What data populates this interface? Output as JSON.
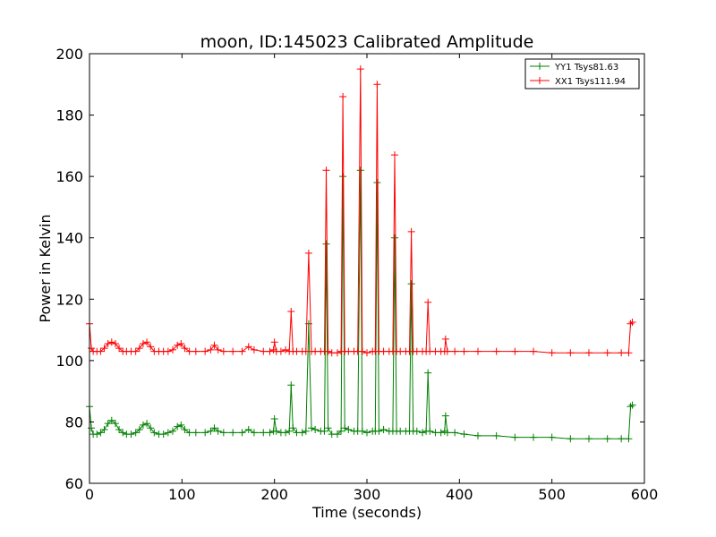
{
  "chart_data": {
    "type": "line",
    "title": "moon, ID:145023 Calibrated Amplitude",
    "xlabel": "Time (seconds)",
    "ylabel": "Power in Kelvin",
    "xlim": [
      0,
      600
    ],
    "ylim": [
      60,
      200
    ],
    "xticks": [
      "0",
      "100",
      "200",
      "300",
      "400",
      "500",
      "600"
    ],
    "yticks": [
      "60",
      "80",
      "100",
      "120",
      "140",
      "160",
      "180",
      "200"
    ],
    "grid": false,
    "legend_position": "top-right",
    "series": [
      {
        "name": "YY1 Tsys81.63",
        "color": "#008000",
        "marker": "+",
        "points": [
          [
            0,
            85
          ],
          [
            2,
            78
          ],
          [
            4,
            76
          ],
          [
            8,
            76
          ],
          [
            12,
            76.5
          ],
          [
            16,
            77.5
          ],
          [
            20,
            79.5
          ],
          [
            24,
            80.5
          ],
          [
            28,
            79.5
          ],
          [
            32,
            77.5
          ],
          [
            36,
            76.5
          ],
          [
            40,
            76
          ],
          [
            45,
            76
          ],
          [
            50,
            76.5
          ],
          [
            54,
            77.5
          ],
          [
            58,
            79
          ],
          [
            62,
            79.5
          ],
          [
            66,
            78
          ],
          [
            70,
            76.5
          ],
          [
            75,
            76
          ],
          [
            80,
            76
          ],
          [
            85,
            76.5
          ],
          [
            90,
            77
          ],
          [
            95,
            78.5
          ],
          [
            99,
            79
          ],
          [
            103,
            77.5
          ],
          [
            108,
            76.5
          ],
          [
            115,
            76.5
          ],
          [
            125,
            76.5
          ],
          [
            131,
            77
          ],
          [
            135,
            78
          ],
          [
            139,
            77
          ],
          [
            145,
            76.5
          ],
          [
            155,
            76.5
          ],
          [
            165,
            76.5
          ],
          [
            172,
            77.5
          ],
          [
            178,
            76.5
          ],
          [
            188,
            76.5
          ],
          [
            195,
            76.5
          ],
          [
            199,
            77
          ],
          [
            200,
            81
          ],
          [
            202,
            77
          ],
          [
            207,
            76.5
          ],
          [
            212,
            76.5
          ],
          [
            216,
            77
          ],
          [
            218,
            92
          ],
          [
            220,
            78
          ],
          [
            224,
            76.5
          ],
          [
            230,
            76.5
          ],
          [
            234,
            77
          ],
          [
            237,
            112
          ],
          [
            240,
            78
          ],
          [
            244,
            77.5
          ],
          [
            250,
            77
          ],
          [
            254,
            77
          ],
          [
            256,
            138
          ],
          [
            258,
            78
          ],
          [
            262,
            76
          ],
          [
            268,
            76
          ],
          [
            272,
            77
          ],
          [
            274,
            160
          ],
          [
            276,
            78
          ],
          [
            280,
            77.5
          ],
          [
            286,
            77
          ],
          [
            290,
            77
          ],
          [
            293,
            162
          ],
          [
            295,
            77
          ],
          [
            300,
            76.5
          ],
          [
            306,
            77
          ],
          [
            309,
            77
          ],
          [
            311,
            158
          ],
          [
            313,
            77
          ],
          [
            318,
            77.5
          ],
          [
            324,
            77
          ],
          [
            328,
            77
          ],
          [
            330,
            140
          ],
          [
            332,
            77
          ],
          [
            336,
            77
          ],
          [
            342,
            77
          ],
          [
            346,
            77
          ],
          [
            348,
            125
          ],
          [
            350,
            77
          ],
          [
            354,
            77
          ],
          [
            360,
            76.5
          ],
          [
            364,
            77
          ],
          [
            366,
            96
          ],
          [
            368,
            77
          ],
          [
            374,
            76.5
          ],
          [
            380,
            76.5
          ],
          [
            384,
            77
          ],
          [
            385,
            82
          ],
          [
            387,
            76.5
          ],
          [
            395,
            76.5
          ],
          [
            405,
            76
          ],
          [
            420,
            75.5
          ],
          [
            440,
            75.5
          ],
          [
            460,
            75
          ],
          [
            480,
            75
          ],
          [
            500,
            75
          ],
          [
            520,
            74.5
          ],
          [
            540,
            74.5
          ],
          [
            560,
            74.5
          ],
          [
            575,
            74.5
          ],
          [
            583,
            74.5
          ],
          [
            585,
            85
          ],
          [
            587,
            85.5
          ]
        ]
      },
      {
        "name": "XX1 Tsys111.94",
        "color": "#ff0000",
        "marker": "+",
        "points": [
          [
            0,
            112
          ],
          [
            2,
            104
          ],
          [
            4,
            103
          ],
          [
            8,
            103
          ],
          [
            12,
            103
          ],
          [
            16,
            104
          ],
          [
            20,
            105.5
          ],
          [
            24,
            106
          ],
          [
            28,
            105.5
          ],
          [
            32,
            104
          ],
          [
            36,
            103
          ],
          [
            40,
            103
          ],
          [
            45,
            103
          ],
          [
            50,
            103
          ],
          [
            54,
            104
          ],
          [
            58,
            105.5
          ],
          [
            62,
            106
          ],
          [
            66,
            104.5
          ],
          [
            70,
            103
          ],
          [
            75,
            103
          ],
          [
            80,
            103
          ],
          [
            85,
            103
          ],
          [
            90,
            103.5
          ],
          [
            95,
            105
          ],
          [
            99,
            105.5
          ],
          [
            103,
            104
          ],
          [
            108,
            103
          ],
          [
            115,
            103
          ],
          [
            125,
            103
          ],
          [
            131,
            103.5
          ],
          [
            135,
            105
          ],
          [
            139,
            103.5
          ],
          [
            145,
            103
          ],
          [
            155,
            103
          ],
          [
            165,
            103
          ],
          [
            172,
            104.5
          ],
          [
            178,
            103.5
          ],
          [
            188,
            103
          ],
          [
            195,
            103
          ],
          [
            199,
            103.5
          ],
          [
            200,
            106
          ],
          [
            202,
            103
          ],
          [
            207,
            103
          ],
          [
            212,
            103.5
          ],
          [
            216,
            103
          ],
          [
            218,
            116
          ],
          [
            220,
            103
          ],
          [
            224,
            103
          ],
          [
            230,
            103
          ],
          [
            234,
            103
          ],
          [
            237,
            135
          ],
          [
            240,
            103
          ],
          [
            244,
            103
          ],
          [
            250,
            103
          ],
          [
            254,
            103
          ],
          [
            256,
            162
          ],
          [
            258,
            103
          ],
          [
            262,
            102.5
          ],
          [
            268,
            102.5
          ],
          [
            272,
            103
          ],
          [
            274,
            186
          ],
          [
            276,
            103
          ],
          [
            280,
            103
          ],
          [
            286,
            103
          ],
          [
            290,
            103
          ],
          [
            293,
            195
          ],
          [
            295,
            103
          ],
          [
            300,
            102.5
          ],
          [
            306,
            103
          ],
          [
            309,
            103
          ],
          [
            311,
            190
          ],
          [
            313,
            103
          ],
          [
            318,
            103
          ],
          [
            324,
            103
          ],
          [
            328,
            103
          ],
          [
            330,
            167
          ],
          [
            332,
            103
          ],
          [
            336,
            103
          ],
          [
            342,
            103
          ],
          [
            346,
            103
          ],
          [
            348,
            142
          ],
          [
            350,
            103
          ],
          [
            354,
            103
          ],
          [
            360,
            103
          ],
          [
            364,
            103
          ],
          [
            366,
            119
          ],
          [
            368,
            103
          ],
          [
            374,
            103
          ],
          [
            380,
            103
          ],
          [
            384,
            103
          ],
          [
            385,
            107
          ],
          [
            387,
            103
          ],
          [
            395,
            103
          ],
          [
            405,
            103
          ],
          [
            420,
            103
          ],
          [
            440,
            103
          ],
          [
            460,
            103
          ],
          [
            480,
            103
          ],
          [
            500,
            102.5
          ],
          [
            520,
            102.5
          ],
          [
            540,
            102.5
          ],
          [
            560,
            102.5
          ],
          [
            575,
            102.5
          ],
          [
            583,
            102.5
          ],
          [
            585,
            112
          ],
          [
            587,
            112.5
          ]
        ]
      }
    ]
  }
}
